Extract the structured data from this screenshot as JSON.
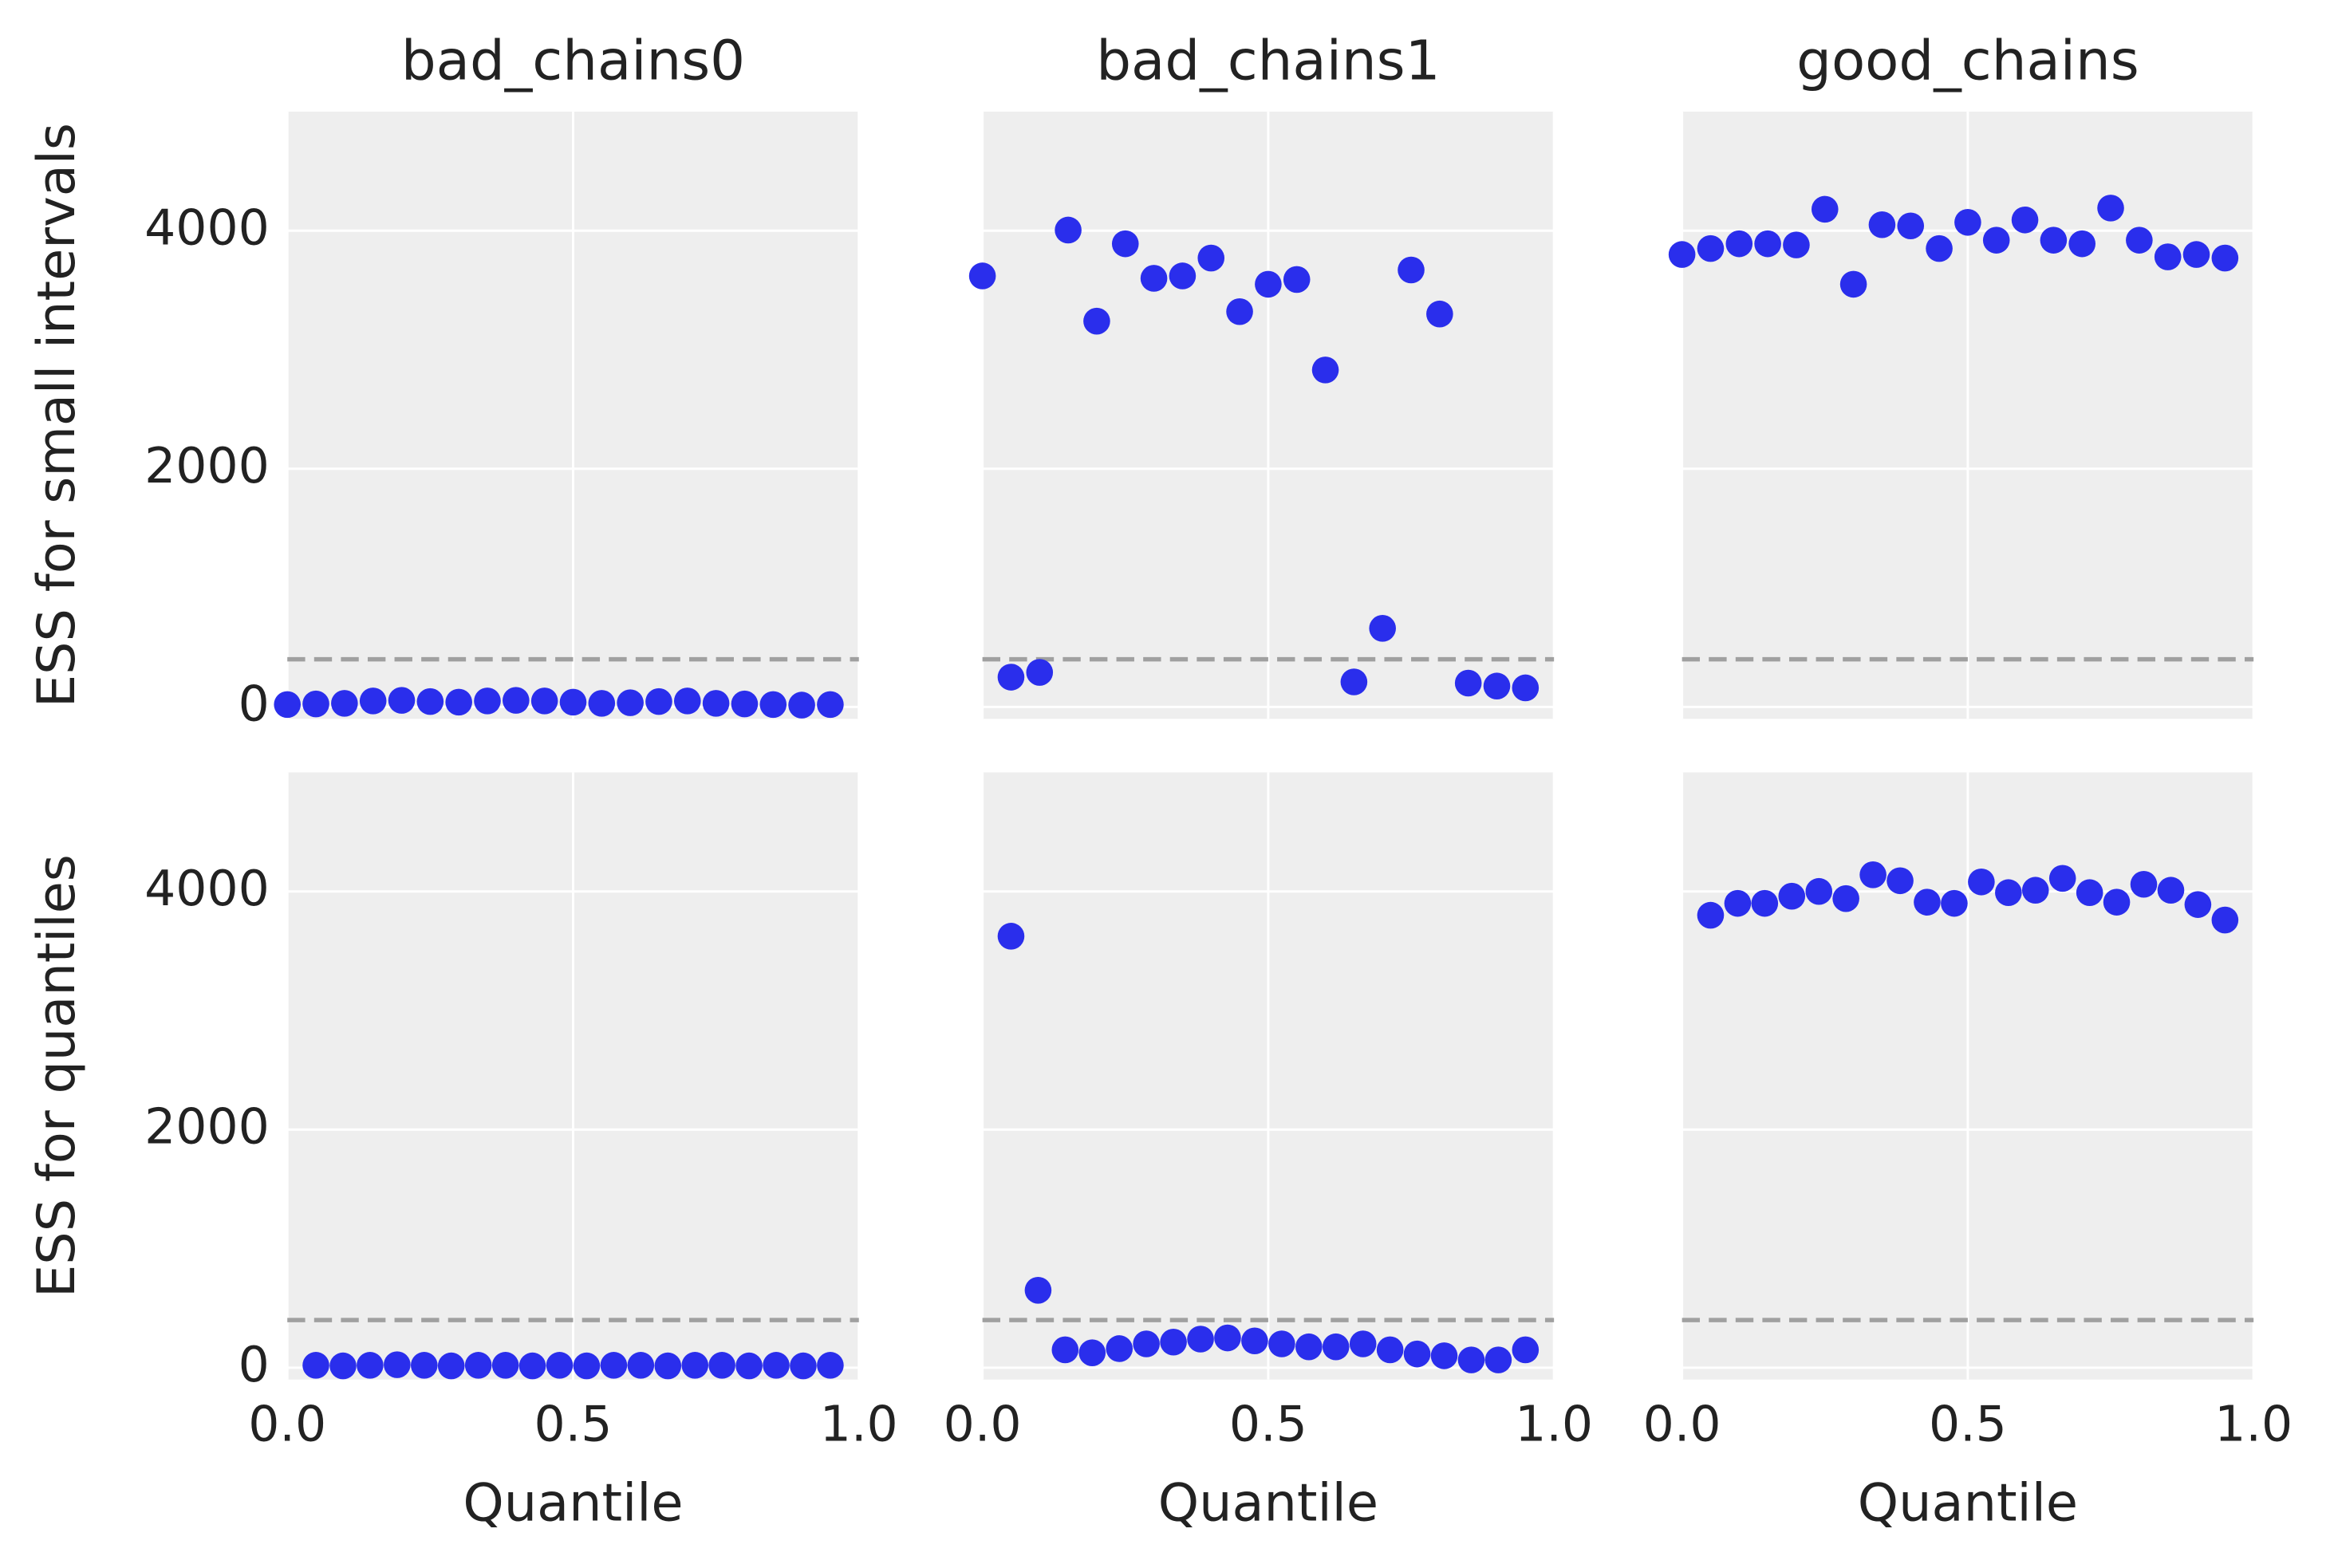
{
  "chart_data": [
    {
      "type": "scatter",
      "title": "bad_chains0",
      "ylabel": "ESS for small intervals",
      "color": "#2a2eec",
      "grid": true,
      "hline": 400,
      "x": [
        0,
        0.05,
        0.1,
        0.15,
        0.2,
        0.25,
        0.3,
        0.35,
        0.4,
        0.45,
        0.5,
        0.55,
        0.6,
        0.65,
        0.7,
        0.75,
        0.8,
        0.85,
        0.9,
        0.95
      ],
      "values": [
        20,
        25,
        30,
        50,
        55,
        45,
        40,
        50,
        55,
        50,
        40,
        30,
        35,
        45,
        50,
        30,
        25,
        20,
        15,
        20
      ],
      "xlim": [
        0,
        1
      ],
      "xticks": [
        {
          "value": 0,
          "label": "0.0"
        },
        {
          "value": 0.5,
          "label": "0.5"
        },
        {
          "value": 1,
          "label": "1.0"
        }
      ],
      "ylim": [
        -100,
        5000
      ],
      "yticks": [
        0,
        2000,
        4000
      ]
    },
    {
      "type": "scatter",
      "title": "bad_chains1",
      "color": "#2a2eec",
      "grid": true,
      "hline": 400,
      "x": [
        0,
        0.05,
        0.1,
        0.15,
        0.2,
        0.25,
        0.3,
        0.35,
        0.4,
        0.45,
        0.5,
        0.55,
        0.6,
        0.65,
        0.7,
        0.75,
        0.8,
        0.85,
        0.9,
        0.95
      ],
      "values": [
        3620,
        250,
        290,
        4005,
        3240,
        3890,
        3600,
        3620,
        3770,
        3320,
        3550,
        3590,
        2830,
        210,
        660,
        3670,
        3300,
        200,
        175,
        160
      ],
      "xlim": [
        0,
        1
      ],
      "xticks": [
        {
          "value": 0,
          "label": "0.0"
        },
        {
          "value": 0.5,
          "label": "0.5"
        },
        {
          "value": 1,
          "label": "1.0"
        }
      ],
      "ylim": [
        -100,
        5000
      ],
      "yticks": [
        0,
        2000,
        4000
      ]
    },
    {
      "type": "scatter",
      "title": "good_chains",
      "color": "#2a2eec",
      "grid": true,
      "hline": 400,
      "x": [
        0,
        0.05,
        0.1,
        0.15,
        0.2,
        0.25,
        0.3,
        0.35,
        0.4,
        0.45,
        0.5,
        0.55,
        0.6,
        0.65,
        0.7,
        0.75,
        0.8,
        0.85,
        0.9,
        0.95
      ],
      "values": [
        3800,
        3850,
        3890,
        3890,
        3880,
        4180,
        3550,
        4050,
        4040,
        3850,
        4070,
        3920,
        4090,
        3920,
        3890,
        4190,
        3920,
        3780,
        3800,
        3770
      ],
      "xlim": [
        0,
        1
      ],
      "xticks": [
        {
          "value": 0,
          "label": "0.0"
        },
        {
          "value": 0.5,
          "label": "0.5"
        },
        {
          "value": 1,
          "label": "1.0"
        }
      ],
      "ylim": [
        -100,
        5000
      ],
      "yticks": [
        0,
        2000,
        4000
      ]
    },
    {
      "type": "scatter",
      "ylabel": "ESS for quantiles",
      "xlabel": "Quantile",
      "color": "#2a2eec",
      "grid": true,
      "hline": 400,
      "x": [
        0.05,
        0.0974,
        0.1447,
        0.1921,
        0.2395,
        0.2868,
        0.3342,
        0.3816,
        0.4289,
        0.4763,
        0.5237,
        0.5711,
        0.6184,
        0.6658,
        0.7132,
        0.7605,
        0.8079,
        0.8553,
        0.9026,
        0.95
      ],
      "values": [
        20,
        15,
        20,
        25,
        20,
        15,
        20,
        20,
        15,
        20,
        15,
        20,
        20,
        15,
        20,
        20,
        15,
        20,
        15,
        20
      ],
      "xlim": [
        0,
        1
      ],
      "xticks": [
        {
          "value": 0,
          "label": "0.0"
        },
        {
          "value": 0.5,
          "label": "0.5"
        },
        {
          "value": 1,
          "label": "1.0"
        }
      ],
      "ylim": [
        -100,
        5000
      ],
      "yticks": [
        0,
        2000,
        4000
      ]
    },
    {
      "type": "scatter",
      "xlabel": "Quantile",
      "color": "#2a2eec",
      "grid": true,
      "hline": 400,
      "x": [
        0.05,
        0.0974,
        0.1447,
        0.1921,
        0.2395,
        0.2868,
        0.3342,
        0.3816,
        0.4289,
        0.4763,
        0.5237,
        0.5711,
        0.6184,
        0.6658,
        0.7132,
        0.7605,
        0.8079,
        0.8553,
        0.9026,
        0.95
      ],
      "values": [
        3624,
        650,
        150,
        125,
        160,
        200,
        215,
        240,
        250,
        225,
        200,
        175,
        175,
        200,
        150,
        115,
        100,
        65,
        65,
        150
      ],
      "xlim": [
        0,
        1
      ],
      "xticks": [
        {
          "value": 0,
          "label": "0.0"
        },
        {
          "value": 0.5,
          "label": "0.5"
        },
        {
          "value": 1,
          "label": "1.0"
        }
      ],
      "ylim": [
        -100,
        5000
      ],
      "yticks": [
        0,
        2000,
        4000
      ]
    },
    {
      "type": "scatter",
      "xlabel": "Quantile",
      "color": "#2a2eec",
      "grid": true,
      "hline": 400,
      "x": [
        0.05,
        0.0974,
        0.1447,
        0.1921,
        0.2395,
        0.2868,
        0.3342,
        0.3816,
        0.4289,
        0.4763,
        0.5237,
        0.5711,
        0.6184,
        0.6658,
        0.7132,
        0.7605,
        0.8079,
        0.8553,
        0.9026,
        0.95
      ],
      "values": [
        3800,
        3900,
        3900,
        3960,
        4000,
        3940,
        4140,
        4090,
        3910,
        3900,
        4080,
        3990,
        4010,
        4110,
        3990,
        3910,
        4060,
        4010,
        3890,
        3760
      ],
      "xlim": [
        0,
        1
      ],
      "xticks": [
        {
          "value": 0,
          "label": "0.0"
        },
        {
          "value": 0.5,
          "label": "0.5"
        },
        {
          "value": 1,
          "label": "1.0"
        }
      ],
      "ylim": [
        -100,
        5000
      ],
      "yticks": [
        0,
        2000,
        4000
      ]
    }
  ]
}
